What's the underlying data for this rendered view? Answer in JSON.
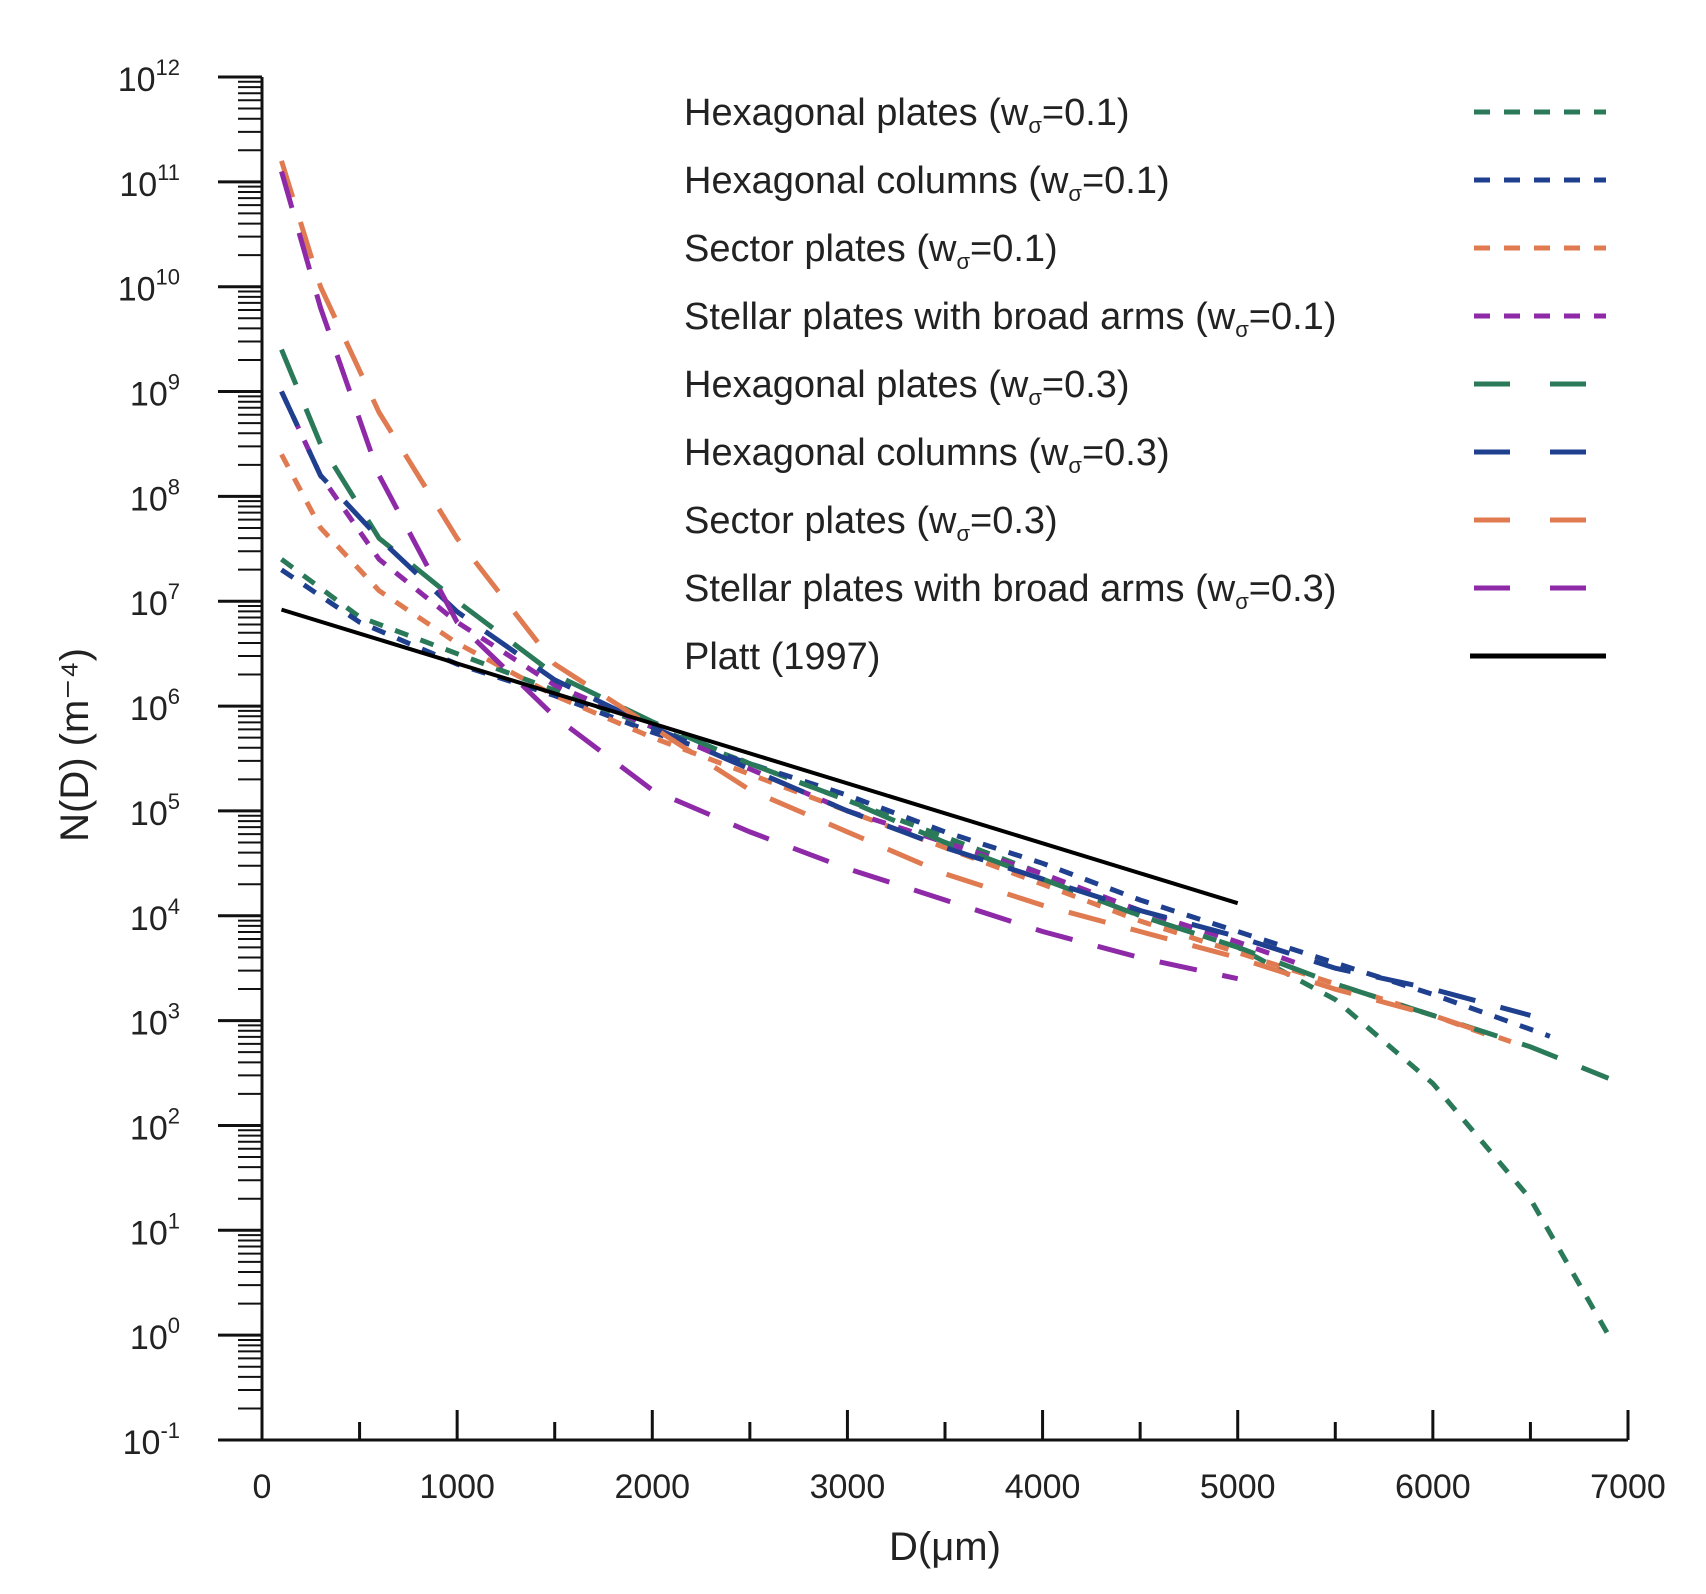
{
  "chart_data": {
    "type": "line",
    "title": "",
    "xlabel": "D(μm)",
    "ylabel": "N(D) (m⁻⁴)",
    "xlim": [
      0,
      7000
    ],
    "ylim_log10": [
      -1,
      12
    ],
    "x_ticks": [
      0,
      1000,
      2000,
      3000,
      4000,
      5000,
      6000,
      7000
    ],
    "x_tick_labels": [
      "0",
      "1000",
      "2000",
      "3000",
      "4000",
      "5000",
      "6000",
      "7000"
    ],
    "y_tick_base": "10",
    "y_tick_exponents": [
      "-1",
      "0",
      "1",
      "2",
      "3",
      "4",
      "5",
      "6",
      "7",
      "8",
      "9",
      "10",
      "11",
      "12"
    ],
    "legend_position": "top-right",
    "series": [
      {
        "name": "Hexagonal plates (wσ=0.1)",
        "label_main": "Hexagonal plates (w",
        "label_sub": "σ",
        "label_tail": "=0.1)",
        "color": "#2a7a5a",
        "dash": "short",
        "x": [
          100,
          500,
          1000,
          1500,
          2000,
          2500,
          3000,
          3500,
          4000,
          4500,
          5000,
          5500,
          6000,
          6500,
          6900
        ],
        "log10y": [
          7.4,
          6.85,
          6.5,
          6.15,
          5.8,
          5.45,
          5.1,
          4.75,
          4.4,
          4.0,
          3.7,
          3.2,
          2.4,
          1.3,
          0.0
        ]
      },
      {
        "name": "Hexagonal columns (wσ=0.1)",
        "label_main": "Hexagonal columns (w",
        "label_sub": "σ",
        "label_tail": "=0.1)",
        "color": "#1f3f8f",
        "dash": "short",
        "x": [
          100,
          500,
          1000,
          1500,
          2000,
          2500,
          3000,
          3500,
          4000,
          4500,
          5000,
          5500,
          6000,
          6600
        ],
        "log10y": [
          7.3,
          6.8,
          6.4,
          6.1,
          5.75,
          5.45,
          5.15,
          4.8,
          4.5,
          4.15,
          3.85,
          3.55,
          3.25,
          2.85
        ]
      },
      {
        "name": "Sector plates (wσ=0.1)",
        "label_main": "Sector plates (w",
        "label_sub": "σ",
        "label_tail": "=0.1)",
        "color": "#e07a50",
        "dash": "short",
        "x": [
          100,
          300,
          600,
          1000,
          1500,
          2000,
          2500,
          3000,
          3500,
          4000,
          4500,
          5000,
          5500,
          6000,
          6300
        ],
        "log10y": [
          8.4,
          7.7,
          7.1,
          6.6,
          6.1,
          5.7,
          5.35,
          5.0,
          4.65,
          4.3,
          3.95,
          3.65,
          3.35,
          3.05,
          2.85
        ]
      },
      {
        "name": "Stellar plates with broad arms (wσ=0.1)",
        "label_main": "Stellar plates with broad arms (w",
        "label_sub": "σ",
        "label_tail": "=0.1)",
        "color": "#8e2aa8",
        "dash": "short",
        "x": [
          100,
          300,
          600,
          1000,
          1500,
          2000,
          2500,
          3000,
          3500,
          4000,
          4500,
          5000,
          5300
        ],
        "log10y": [
          9.0,
          8.2,
          7.4,
          6.8,
          6.2,
          5.8,
          5.4,
          5.0,
          4.7,
          4.4,
          4.05,
          3.75,
          3.55
        ]
      },
      {
        "name": "Hexagonal plates (wσ=0.3)",
        "label_main": "Hexagonal plates (w",
        "label_sub": "σ",
        "label_tail": "=0.3)",
        "color": "#2a7a5a",
        "dash": "long",
        "x": [
          100,
          300,
          600,
          1000,
          1500,
          2000,
          2500,
          3000,
          3500,
          4000,
          4500,
          5000,
          5500,
          6000,
          6500,
          6900
        ],
        "log10y": [
          9.4,
          8.5,
          7.6,
          7.0,
          6.3,
          5.85,
          5.45,
          5.1,
          4.7,
          4.35,
          4.0,
          3.7,
          3.35,
          3.05,
          2.75,
          2.45
        ]
      },
      {
        "name": "Hexagonal columns (wσ=0.3)",
        "label_main": "Hexagonal columns (w",
        "label_sub": "σ",
        "label_tail": "=0.3)",
        "color": "#1f3f8f",
        "dash": "long",
        "x": [
          100,
          300,
          600,
          1000,
          1500,
          2000,
          2500,
          3000,
          3500,
          4000,
          4500,
          5000,
          5500,
          6000,
          6500
        ],
        "log10y": [
          9.0,
          8.2,
          7.6,
          6.9,
          6.25,
          5.8,
          5.4,
          5.0,
          4.65,
          4.35,
          4.05,
          3.8,
          3.5,
          3.3,
          3.05
        ]
      },
      {
        "name": "Sector plates (wσ=0.3)",
        "label_main": "Sector plates (w",
        "label_sub": "σ",
        "label_tail": "=0.3)",
        "color": "#e07a50",
        "dash": "long",
        "x": [
          100,
          300,
          600,
          1000,
          1500,
          2000,
          2500,
          3000,
          3500,
          4000,
          4500,
          5000,
          5500,
          6000,
          6400
        ],
        "log10y": [
          11.2,
          10.0,
          8.8,
          7.6,
          6.4,
          5.8,
          5.2,
          4.8,
          4.4,
          4.1,
          3.85,
          3.6,
          3.3,
          3.05,
          2.8
        ]
      },
      {
        "name": "Stellar plates with broad arms (wσ=0.3)",
        "label_main": "Stellar plates with broad arms (w",
        "label_sub": "σ",
        "label_tail": "=0.3)",
        "color": "#8e2aa8",
        "dash": "long",
        "x": [
          100,
          300,
          600,
          1000,
          1500,
          2000,
          2500,
          3000,
          3500,
          4000,
          4500,
          5000
        ],
        "log10y": [
          11.1,
          9.8,
          8.2,
          6.8,
          5.9,
          5.2,
          4.8,
          4.45,
          4.15,
          3.85,
          3.6,
          3.4
        ]
      },
      {
        "name": "Platt (1997)",
        "label_main": "Platt (1997)",
        "label_sub": "",
        "label_tail": "",
        "color": "#000000",
        "dash": "solid",
        "x": [
          100,
          5000
        ],
        "log10y": [
          6.92,
          4.12
        ]
      }
    ]
  }
}
